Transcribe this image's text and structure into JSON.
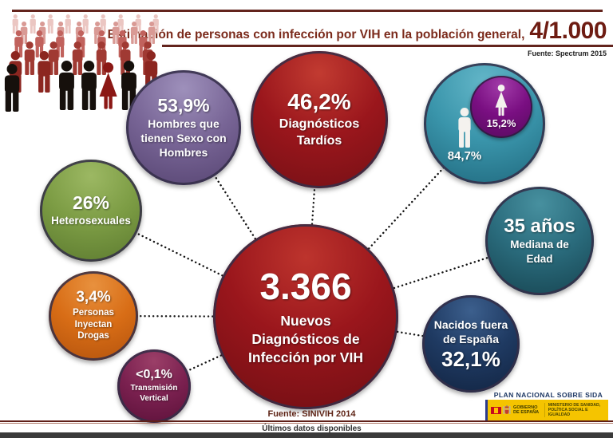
{
  "header": {
    "title": "Estimación de personas con infección por VIH en la población general,",
    "rate": "4/1.000",
    "source": "Fuente: Spectrum 2015"
  },
  "central_bubble": {
    "value": "3.366",
    "label": "Nuevos Diagnósticos de Infección por VIH"
  },
  "bubbles": {
    "late_diagnosis": {
      "value": "46,2%",
      "label": "Diagnósticos Tardíos",
      "color": "#9a161c"
    },
    "msm": {
      "value": "53,9%",
      "label": "Hombres que tienen Sexo con Hombres",
      "color": "#786596"
    },
    "heterosexual": {
      "value": "26%",
      "label": "Heterosexuales",
      "color": "#7c9c44"
    },
    "inject_drugs": {
      "value": "3,4%",
      "label": "Personas Inyectan Drogas",
      "color": "#d86d16"
    },
    "vertical_transmission": {
      "value": "<0,1%",
      "label": "Transmisión Vertical",
      "color": "#7b2150"
    },
    "sex_distribution": {
      "male_value": "84,7%",
      "female_value": "15,2%",
      "male_color": "#3a95ab",
      "female_color": "#7a0f82"
    },
    "median_age": {
      "value": "35 años",
      "label": "Mediana de Edad",
      "color": "#2a6b7c"
    },
    "born_abroad": {
      "label": "Nacidos fuera de España",
      "value": "32,1%",
      "color": "#1f3a62"
    }
  },
  "footer": {
    "source": "Fuente: SINIVIH 2014",
    "note": "Últimos datos disponibles",
    "plan_title": "PLAN NACIONAL SOBRE SIDA",
    "government": "GOBIERNO DE ESPAÑA",
    "ministry": "MINISTERIO DE SANIDAD, POLÍTICA SOCIAL E IGUALDAD"
  },
  "icons": {
    "crowd": "people-crowd-icon",
    "male": "male-person-icon",
    "female": "female-person-icon",
    "flag": "spain-flag-icon"
  },
  "accent_colors": {
    "maroon_line": "#63241d",
    "header_text": "#7b2a1b",
    "central_red": "#9a161c",
    "footer_bar": "#3a3a3a",
    "logo_yellow": "#f5c400",
    "plan_navy": "#1e3864"
  }
}
